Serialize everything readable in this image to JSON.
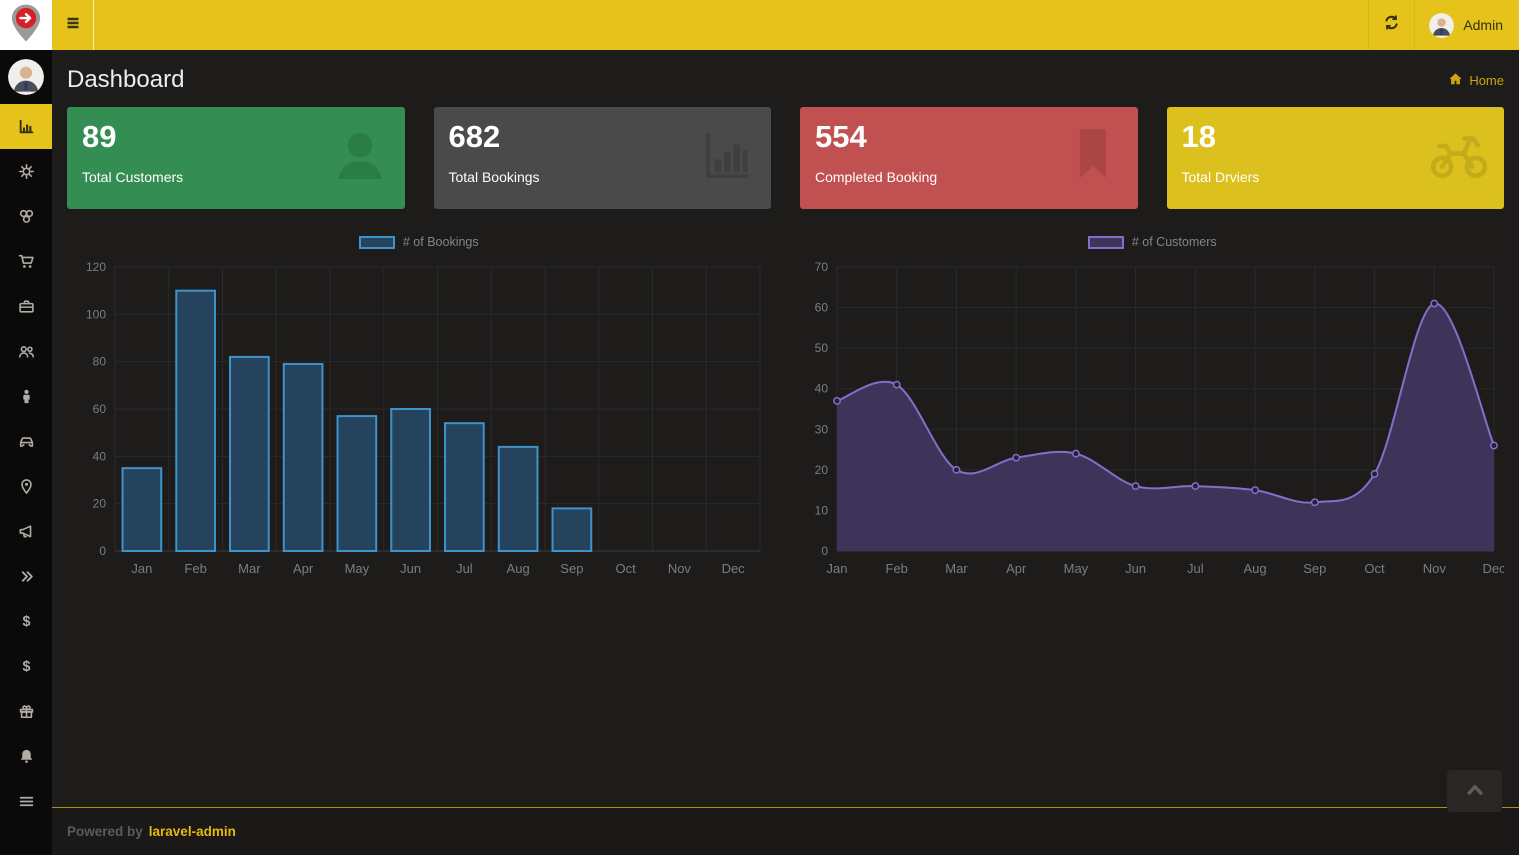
{
  "topbar": {
    "admin_label": "Admin",
    "bg_color": "#e5c31a"
  },
  "sidebar": {
    "items": [
      {
        "icon": "bar-chart-icon",
        "active": true
      },
      {
        "icon": "cogs-icon",
        "active": false
      },
      {
        "icon": "circles-icon",
        "active": false
      },
      {
        "icon": "shopping-cart-icon",
        "active": false
      },
      {
        "icon": "briefcase-icon",
        "active": false
      },
      {
        "icon": "users-icon",
        "active": false
      },
      {
        "icon": "person-icon",
        "active": false
      },
      {
        "icon": "car-icon",
        "active": false
      },
      {
        "icon": "map-pin-icon",
        "active": false
      },
      {
        "icon": "megaphone-icon",
        "active": false
      },
      {
        "icon": "double-angle-right-icon",
        "active": false
      },
      {
        "icon": "dollar-icon",
        "active": false
      },
      {
        "icon": "dollar-icon",
        "active": false
      },
      {
        "icon": "gift-icon",
        "active": false
      },
      {
        "icon": "bell-icon",
        "active": false
      },
      {
        "icon": "menu-bars-icon",
        "active": false
      }
    ]
  },
  "header": {
    "title": "Dashboard",
    "breadcrumb_label": "Home"
  },
  "cards": [
    {
      "value": "89",
      "label": "Total Customers",
      "icon": "user-icon",
      "bg": "#348e54",
      "icon_color": "#2a7d47"
    },
    {
      "value": "682",
      "label": "Total Bookings",
      "icon": "bar-chart-icon",
      "bg": "#4a4a4a",
      "icon_color": "#3f3f3f"
    },
    {
      "value": "554",
      "label": "Completed Booking",
      "icon": "bookmark-icon",
      "bg": "#c05150",
      "icon_color": "#aa4645"
    },
    {
      "value": "18",
      "label": "Total Drviers",
      "icon": "motorcycle-icon",
      "bg": "#dcc01d",
      "icon_color": "#c4ab1a"
    }
  ],
  "chart_data": [
    {
      "type": "bar",
      "title": "# of Bookings",
      "categories": [
        "Jan",
        "Feb",
        "Mar",
        "Apr",
        "May",
        "Jun",
        "Jul",
        "Aug",
        "Sep",
        "Oct",
        "Nov",
        "Dec"
      ],
      "values": [
        35,
        110,
        82,
        79,
        57,
        60,
        54,
        44,
        18,
        0,
        0,
        0
      ],
      "xlabel": "",
      "ylabel": "",
      "ylim": [
        0,
        120
      ],
      "ytick_step": 20,
      "grid": true,
      "legend_position": "top",
      "series_color": "#4092cc",
      "fill_color": "#25435c"
    },
    {
      "type": "line",
      "title": "# of Customers",
      "categories": [
        "Jan",
        "Feb",
        "Mar",
        "Apr",
        "May",
        "Jun",
        "Jul",
        "Aug",
        "Sep",
        "Oct",
        "Nov",
        "Dec"
      ],
      "values": [
        37,
        41,
        20,
        23,
        24,
        16,
        16,
        15,
        12,
        19,
        61,
        26
      ],
      "xlabel": "",
      "ylabel": "",
      "ylim": [
        0,
        70
      ],
      "ytick_step": 10,
      "grid": true,
      "legend_position": "top",
      "series_color": "#8170ca",
      "fill_color": "#3e3459"
    }
  ],
  "footer": {
    "powered_by": "Powered by",
    "brand": "laravel-admin"
  }
}
